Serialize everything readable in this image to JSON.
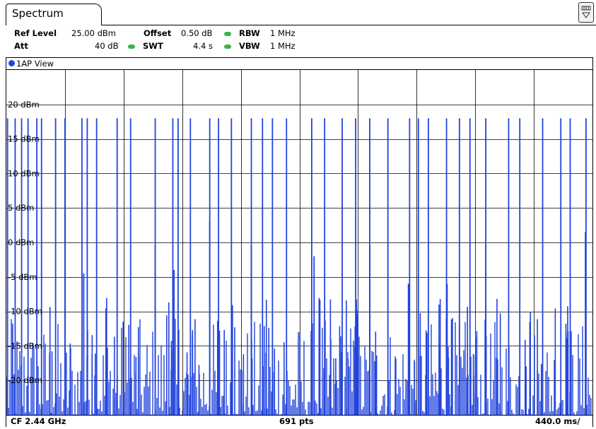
{
  "tab": {
    "label": "Spectrum"
  },
  "settings": {
    "ref_level_label": "Ref Level",
    "ref_level_value": "25.00 dBm",
    "offset_label": "Offset",
    "offset_value": "0.50 dB",
    "rbw_label": "RBW",
    "rbw_value": "1 MHz",
    "att_label": "Att",
    "att_value": "40 dB",
    "swt_label": "SWT",
    "swt_value": "4.4 s",
    "vbw_label": "VBW",
    "vbw_value": "1 MHz",
    "indicator_color": "#3cb44a"
  },
  "window": {
    "title": "1AP View",
    "trace_color": "#2244dd"
  },
  "footer": {
    "center_freq": "CF 2.44 GHz",
    "points": "691 pts",
    "sweep": "440.0 ms/"
  },
  "chart_data": {
    "type": "line",
    "title": "",
    "xlabel": "",
    "ylabel": "",
    "y_ticks": [
      "20 dBm",
      "15 dBm",
      "10 dBm",
      "5 dBm",
      "0 dBm",
      "-5 dBm",
      "-10 dBm",
      "-15 dBm",
      "-20 dBm"
    ],
    "y_tick_values": [
      20,
      15,
      10,
      5,
      0,
      -5,
      -10,
      -15,
      -20
    ],
    "ylim": [
      -25,
      25
    ],
    "x_divisions": 10,
    "grid": true,
    "series": [
      {
        "name": "",
        "peaks": [
          {
            "x": 0.2,
            "y": 18
          },
          {
            "x": 1.5,
            "y": 18
          },
          {
            "x": 2.6,
            "y": 18
          },
          {
            "x": 3.7,
            "y": 18
          },
          {
            "x": 5.2,
            "y": 18
          },
          {
            "x": 6.0,
            "y": 18
          },
          {
            "x": 8.4,
            "y": 18
          },
          {
            "x": 10.0,
            "y": 18
          },
          {
            "x": 12.9,
            "y": 18
          },
          {
            "x": 13.8,
            "y": 18
          },
          {
            "x": 15.4,
            "y": 18
          },
          {
            "x": 18.9,
            "y": 18
          },
          {
            "x": 21.2,
            "y": 18
          },
          {
            "x": 25.4,
            "y": 18
          },
          {
            "x": 28.4,
            "y": 18
          },
          {
            "x": 29.3,
            "y": 18
          },
          {
            "x": 31.4,
            "y": 18
          },
          {
            "x": 34.7,
            "y": 18
          },
          {
            "x": 36.2,
            "y": 18
          },
          {
            "x": 38.4,
            "y": 18
          },
          {
            "x": 41.8,
            "y": 18
          },
          {
            "x": 43.7,
            "y": 18
          },
          {
            "x": 45.4,
            "y": 18
          },
          {
            "x": 47.8,
            "y": 18
          },
          {
            "x": 52.1,
            "y": 18
          },
          {
            "x": 54.3,
            "y": 18
          },
          {
            "x": 57.3,
            "y": 18
          },
          {
            "x": 59.6,
            "y": 18
          },
          {
            "x": 62.0,
            "y": 18
          },
          {
            "x": 65.1,
            "y": 18
          },
          {
            "x": 68.8,
            "y": 18
          },
          {
            "x": 70.3,
            "y": 18
          },
          {
            "x": 72.0,
            "y": 18
          },
          {
            "x": 75.1,
            "y": 18
          },
          {
            "x": 77.3,
            "y": 18
          },
          {
            "x": 79.1,
            "y": 18
          },
          {
            "x": 81.8,
            "y": 18
          },
          {
            "x": 85.7,
            "y": 18
          },
          {
            "x": 87.6,
            "y": 18
          },
          {
            "x": 91.5,
            "y": 18
          },
          {
            "x": 94.6,
            "y": 18
          },
          {
            "x": 96.2,
            "y": 18
          },
          {
            "x": 98.9,
            "y": 18
          },
          {
            "x": 10.0,
            "y": -0.5
          },
          {
            "x": 13.2,
            "y": -4.5
          },
          {
            "x": 25.4,
            "y": -0.5
          },
          {
            "x": 28.6,
            "y": -4
          },
          {
            "x": 34.7,
            "y": 3
          },
          {
            "x": 41.8,
            "y": -0.5
          },
          {
            "x": 52.5,
            "y": -2
          },
          {
            "x": 62.0,
            "y": -0.5
          },
          {
            "x": 68.6,
            "y": -6
          },
          {
            "x": 75.2,
            "y": -6
          },
          {
            "x": 81.8,
            "y": -0.5
          },
          {
            "x": 98.8,
            "y": 1.5
          }
        ]
      }
    ]
  }
}
